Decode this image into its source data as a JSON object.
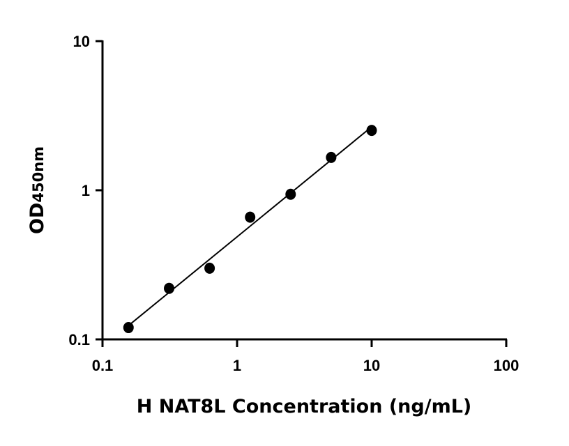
{
  "chart_data": {
    "type": "scatter",
    "title": "",
    "xlabel": "H NAT8L Concentration (ng/mL)",
    "ylabel_main": "OD",
    "ylabel_sub": "450nm",
    "x_scale": "log",
    "y_scale": "log",
    "xlim": [
      0.1,
      100
    ],
    "ylim": [
      0.1,
      10
    ],
    "x_ticks": [
      0.1,
      1,
      10,
      100
    ],
    "x_tick_labels": [
      "0.1",
      "1",
      "10",
      "100"
    ],
    "y_ticks": [
      0.1,
      1,
      10
    ],
    "y_tick_labels": [
      "0.1",
      "1",
      "10"
    ],
    "grid": false,
    "fit_line": "log-log linear fit",
    "x": [
      0.156,
      0.3125,
      0.625,
      1.25,
      2.5,
      5,
      10
    ],
    "y": [
      0.12,
      0.22,
      0.3,
      0.66,
      0.94,
      1.66,
      2.52
    ],
    "marker_color": "#000000"
  }
}
